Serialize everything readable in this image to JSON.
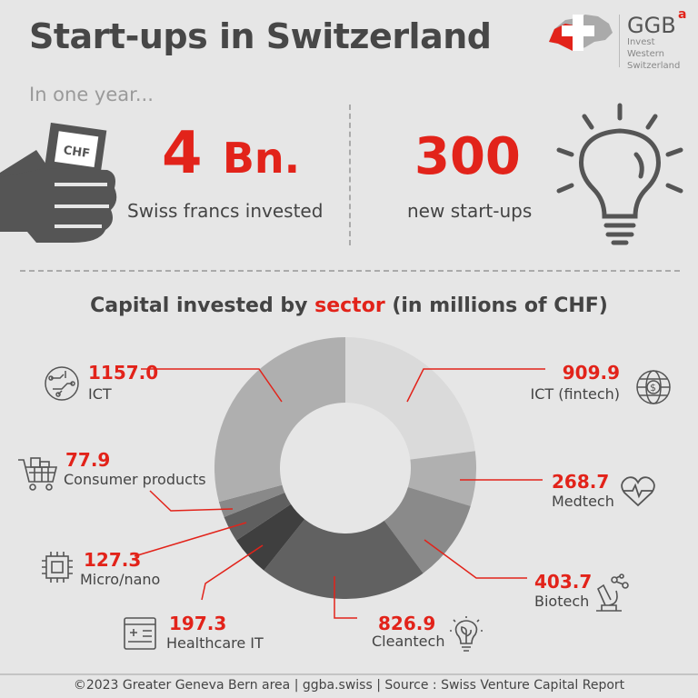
{
  "header": {
    "title": "Start-ups in Switzerland",
    "subtitle": "In one year..."
  },
  "logo": {
    "brand": "GGB",
    "superscript": "a",
    "tagline": [
      "Invest",
      "Western",
      "Switzerland"
    ]
  },
  "stats": [
    {
      "value": "4",
      "unit": "Bn.",
      "label": "Swiss francs invested",
      "icon": "fist-holding-chf-banknote-icon",
      "note": "CHF"
    },
    {
      "value": "300",
      "label": "new start-ups",
      "icon": "lightbulb-icon"
    }
  ],
  "chart_title": {
    "before": "Capital invested by ",
    "highlight": "sector",
    "after": " (in millions of CHF)"
  },
  "chart_data": {
    "type": "pie",
    "donut": true,
    "title": "Capital invested by sector (in millions of CHF)",
    "slices": [
      {
        "label": "ICT (fintech)",
        "value": 909.9,
        "display": "909.9",
        "color": "#dadada",
        "icon": "globe-dollar-icon"
      },
      {
        "label": "Medtech",
        "value": 268.7,
        "display": "268.7",
        "color": "#b0b0b0",
        "icon": "heart-pulse-icon"
      },
      {
        "label": "Biotech",
        "value": 403.7,
        "display": "403.7",
        "color": "#8a8a8a",
        "icon": "microscope-icon"
      },
      {
        "label": "Cleantech",
        "value": 826.9,
        "display": "826.9",
        "color": "#616161",
        "icon": "eco-bulb-icon"
      },
      {
        "label": "Healthcare IT",
        "value": 197.3,
        "display": "197.3",
        "color": "#3f3f3f",
        "icon": "medical-browser-icon"
      },
      {
        "label": "Micro/nano",
        "value": 127.3,
        "display": "127.3",
        "color": "#5f5f5f",
        "icon": "microchip-icon"
      },
      {
        "label": "Consumer products",
        "value": 77.9,
        "display": "77.9",
        "color": "#898989",
        "icon": "shopping-cart-icon"
      },
      {
        "label": "ICT",
        "value": 1157.0,
        "display": "1157.0",
        "color": "#afafaf",
        "icon": "circuit-globe-icon"
      }
    ],
    "accent": "#e2231a"
  },
  "footer": "©2023 Greater Geneva Bern area | ggba.swiss | Source : Swiss Venture Capital Report"
}
